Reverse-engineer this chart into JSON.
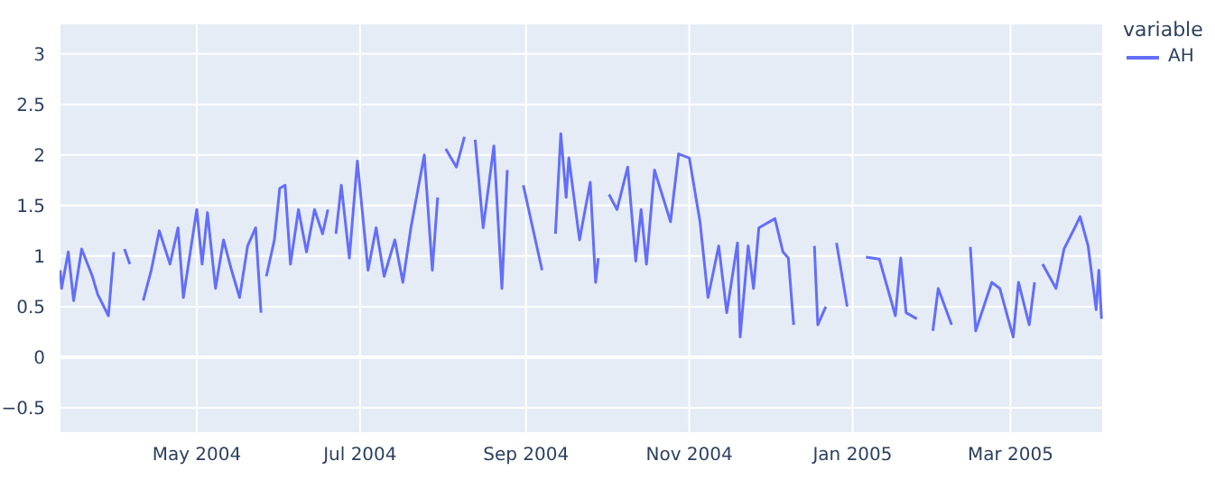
{
  "chart_data": {
    "type": "line",
    "legend_title": "variable",
    "legend": "top right",
    "grid": true,
    "line_style": "solid",
    "marker": "none",
    "xlim": [
      "2004-03-10T18:00",
      "2005-04-04T14:00"
    ],
    "xticks": [
      {
        "value": "2004-05-01",
        "label": "May 2004"
      },
      {
        "value": "2004-07-01",
        "label": "Jul 2004"
      },
      {
        "value": "2004-09-01",
        "label": "Sep 2004"
      },
      {
        "value": "2004-11-01",
        "label": "Nov 2004"
      },
      {
        "value": "2005-01-01",
        "label": "Jan 2005"
      },
      {
        "value": "2005-03-01",
        "label": "Mar 2005"
      }
    ],
    "ylim": [
      -0.75,
      3.3
    ],
    "yticks": [
      {
        "value": -0.5,
        "label": "−0.5"
      },
      0,
      0.5,
      1,
      1.5,
      2,
      2.5,
      3
    ],
    "x": [
      "2004-03-11",
      "2004-03-11T12:00",
      "2004-03-14",
      "2004-03-16",
      "2004-03-19",
      "2004-03-23",
      "2004-03-25",
      "2004-03-29",
      "2004-03-31",
      "2004-04-01",
      "2004-04-04",
      "2004-04-06",
      "2004-04-08",
      "2004-04-08T12:00",
      "2004-04-09",
      "2004-04-11",
      "2004-04-14",
      "2004-04-17",
      "2004-04-21",
      "2004-04-24",
      "2004-04-26",
      "2004-05-01",
      "2004-05-03",
      "2004-05-05",
      "2004-05-08",
      "2004-05-11",
      "2004-05-14",
      "2004-05-17",
      "2004-05-20",
      "2004-05-23",
      "2004-05-25",
      "2004-05-26",
      "2004-05-27",
      "2004-05-30",
      "2004-06-01",
      "2004-06-03",
      "2004-06-05",
      "2004-06-08",
      "2004-06-11",
      "2004-06-14",
      "2004-06-17",
      "2004-06-19",
      "2004-06-20",
      "2004-06-21",
      "2004-06-21T12:00",
      "2004-06-22",
      "2004-06-24",
      "2004-06-27",
      "2004-06-30",
      "2004-07-04",
      "2004-07-07",
      "2004-07-10",
      "2004-07-14",
      "2004-07-17",
      "2004-07-20",
      "2004-07-25",
      "2004-07-28",
      "2004-07-30",
      "2004-07-31",
      "2004-08-02",
      "2004-08-06",
      "2004-08-09",
      "2004-08-11",
      "2004-08-13",
      "2004-08-16",
      "2004-08-20",
      "2004-08-23",
      "2004-08-25",
      "2004-08-27",
      "2004-08-28",
      "2004-08-29",
      "2004-08-31",
      "2004-09-03",
      "2004-09-07",
      "2004-09-09",
      "2004-09-09T12:00",
      "2004-09-10",
      "2004-09-12",
      "2004-09-14",
      "2004-09-16",
      "2004-09-17",
      "2004-09-21",
      "2004-09-25",
      "2004-09-27",
      "2004-09-28",
      "2004-10-01",
      "2004-10-02",
      "2004-10-05",
      "2004-10-09",
      "2004-10-12",
      "2004-10-14",
      "2004-10-16",
      "2004-10-19",
      "2004-10-25",
      "2004-10-28",
      "2004-11-01",
      "2004-11-05",
      "2004-11-08",
      "2004-11-12",
      "2004-11-15",
      "2004-11-19",
      "2004-11-20",
      "2004-11-23",
      "2004-11-25",
      "2004-11-27",
      "2004-12-03",
      "2004-12-06",
      "2004-12-08",
      "2004-12-10",
      "2004-12-14",
      "2004-12-16",
      "2004-12-17",
      "2004-12-17T18:00",
      "2004-12-19",
      "2004-12-22",
      "2004-12-24",
      "2004-12-26",
      "2004-12-30",
      "2005-01-02",
      "2005-01-03",
      "2005-01-04",
      "2005-01-06",
      "2005-01-11",
      "2005-01-17",
      "2005-01-19",
      "2005-01-21",
      "2005-01-25",
      "2005-01-29",
      "2005-01-31",
      "2005-02-02",
      "2005-02-07",
      "2005-02-09",
      "2005-02-10",
      "2005-02-12",
      "2005-02-14",
      "2005-02-16",
      "2005-02-22",
      "2005-02-25",
      "2005-03-02",
      "2005-03-04",
      "2005-03-08",
      "2005-03-10",
      "2005-03-11",
      "2005-03-13",
      "2005-03-18",
      "2005-03-21",
      "2005-03-25",
      "2005-03-27",
      "2005-03-30",
      "2005-04-02",
      "2005-04-03",
      "2005-04-04"
    ],
    "series": [
      {
        "name": "AH",
        "color": "#636efa",
        "values": [
          0.86,
          0.68,
          1.04,
          0.56,
          1.07,
          0.8,
          0.62,
          0.41,
          1.04,
          null,
          1.07,
          0.92,
          null,
          null,
          null,
          0.56,
          0.86,
          1.25,
          0.92,
          1.28,
          0.59,
          1.46,
          0.92,
          1.43,
          0.68,
          1.16,
          0.86,
          0.59,
          1.1,
          1.28,
          0.44,
          null,
          0.8,
          1.16,
          1.67,
          1.7,
          0.92,
          1.46,
          1.04,
          1.46,
          1.22,
          1.46,
          null,
          null,
          null,
          1.22,
          1.7,
          0.98,
          1.94,
          0.86,
          1.28,
          0.8,
          1.16,
          0.74,
          1.28,
          2.0,
          0.86,
          1.58,
          null,
          2.06,
          1.88,
          2.18,
          null,
          2.15,
          1.28,
          2.09,
          0.68,
          1.85,
          null,
          null,
          null,
          1.7,
          1.34,
          0.86,
          null,
          null,
          null,
          1.22,
          2.21,
          1.58,
          1.97,
          1.16,
          1.73,
          0.74,
          0.98,
          null,
          1.61,
          1.46,
          1.88,
          0.95,
          1.46,
          0.92,
          1.85,
          1.34,
          2.01,
          1.97,
          1.34,
          0.59,
          1.1,
          0.44,
          1.13,
          0.2,
          1.1,
          0.68,
          1.28,
          1.37,
          1.04,
          0.98,
          0.32,
          null,
          null,
          null,
          1.1,
          0.32,
          0.5,
          null,
          1.13,
          0.5,
          null,
          null,
          null,
          0.99,
          0.97,
          0.41,
          0.98,
          0.44,
          0.38,
          null,
          0.26,
          0.68,
          0.32,
          null,
          null,
          null,
          1.09,
          0.26,
          0.74,
          0.68,
          0.2,
          0.74,
          0.32,
          0.74,
          null,
          0.92,
          0.68,
          1.07,
          1.28,
          1.39,
          1.1,
          0.47,
          0.86,
          0.38
        ]
      }
    ]
  }
}
